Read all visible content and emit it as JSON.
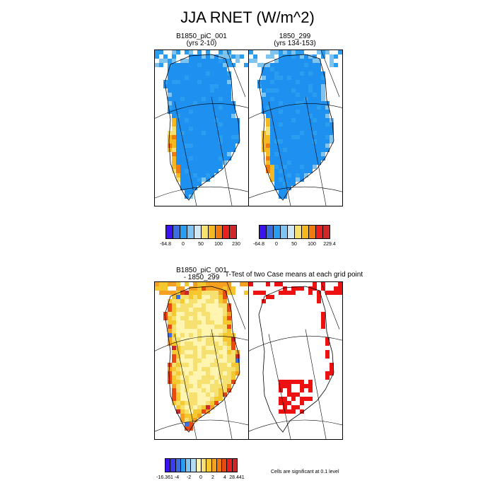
{
  "figure": {
    "title": "JJA RNET (W/m^2)"
  },
  "panels": [
    {
      "title_line1": "B1850_piC_001",
      "title_line2": "(yrs 2-10)"
    },
    {
      "title_line1": "1850_299",
      "title_line2": "(yrs 134-153)"
    },
    {
      "title_line1": "B1850_piC_001",
      "title_line2": "- 1850_299"
    },
    {
      "title_line1": "T-Test of two Case means at each grid point",
      "title_line2": ""
    }
  ],
  "colorbars": [
    {
      "colors": [
        "#3b13f0",
        "#3b6fe0",
        "#2a9df0",
        "#7fc4f0",
        "#cfe8f4",
        "#f5e070",
        "#f5b820",
        "#ee7a10",
        "#e82020",
        "#d02828"
      ],
      "labels": [
        "-64.8",
        "0",
        "50",
        "100",
        "230"
      ]
    },
    {
      "colors": [
        "#3b13f0",
        "#3b6fe0",
        "#2a9df0",
        "#7fc4f0",
        "#cfe8f4",
        "#f5e070",
        "#f5b820",
        "#ee7a10",
        "#e82020",
        "#d02828"
      ],
      "labels": [
        "-64.8",
        "0",
        "50",
        "100",
        "229.4"
      ]
    },
    {
      "colors": [
        "#3b13f0",
        "#3b3bf0",
        "#3b6fe0",
        "#2a9df0",
        "#7fc4f0",
        "#b4dcf4",
        "#fff5b0",
        "#f5e070",
        "#f5c830",
        "#f5a020",
        "#ee7a10",
        "#e84a10",
        "#e82020",
        "#c82828"
      ],
      "labels": [
        "-16.361",
        "-4",
        "-2",
        "0",
        "2",
        "4",
        "28.441"
      ]
    }
  ],
  "significance_note": "Cells are significant at 0.1 level",
  "chart_data": [
    {
      "type": "heatmap",
      "title": "B1850_piC_001 (yrs 2-10)",
      "variable": "JJA RNET",
      "units": "W/m^2",
      "region": "Greenland",
      "value_range": [
        -64.8,
        230
      ],
      "legend": "bottom",
      "interior_class": "0-50",
      "margin_class": "100-230"
    },
    {
      "type": "heatmap",
      "title": "1850_299 (yrs 134-153)",
      "variable": "JJA RNET",
      "units": "W/m^2",
      "region": "Greenland",
      "value_range": [
        -64.8,
        229.4
      ],
      "legend": "bottom",
      "interior_class": "0-50",
      "margin_class": "100-229.4"
    },
    {
      "type": "heatmap",
      "title": "B1850_piC_001 - 1850_299",
      "variable": "JJA RNET difference",
      "units": "W/m^2",
      "region": "Greenland",
      "value_range": [
        -16.361,
        28.441
      ],
      "legend": "bottom",
      "interior_class": "0-2",
      "margin_class": "2-28.441"
    },
    {
      "type": "heatmap",
      "title": "T-Test of two Case means at each grid point",
      "region": "Greenland",
      "significance_level": 0.1
    }
  ]
}
